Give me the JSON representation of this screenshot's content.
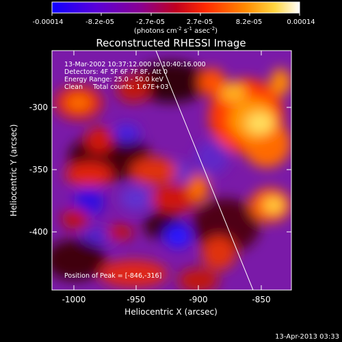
{
  "colorbar": {
    "tick_labels": [
      "-0.00014",
      "-8.2e-05",
      "-2.7e-05",
      "2.7e-05",
      "8.2e-05",
      "0.00014"
    ],
    "unit_label": "(photons cm",
    "unit_exp1": "-2",
    "unit_mid": " s",
    "unit_exp2": "-1",
    "unit_end": " asec",
    "unit_exp3": "-2",
    "unit_close": ")",
    "colors": [
      "#1a00ff",
      "#6a00c8",
      "#b0004a",
      "#ff3a00",
      "#ffa600",
      "#ffffff"
    ]
  },
  "image": {
    "title": "Reconstructed RHESSI Image",
    "info_lines": [
      "13-Mar-2002 10:37:12.000 to 10:40:16.000",
      "Detectors: 4F 5F 6F 7F 8F, Att 0",
      "Energy Range: 25.0 - 50.0 keV",
      "Clean     Total counts: 1.67E+03"
    ],
    "peak_label": "Position of Peak = [-846,-316]",
    "x_axis": {
      "label": "Heliocentric X (arcsec)",
      "ticks": [
        "-1000",
        "-950",
        "-900",
        "-850"
      ],
      "range": [
        -1015,
        -825
      ]
    },
    "y_axis": {
      "label": "Heliocentric Y (arcsec)",
      "ticks": [
        "-300",
        "-350",
        "-400"
      ],
      "range": [
        -445,
        -255
      ]
    },
    "timestamp": "13-Apr-2013 03:33"
  }
}
